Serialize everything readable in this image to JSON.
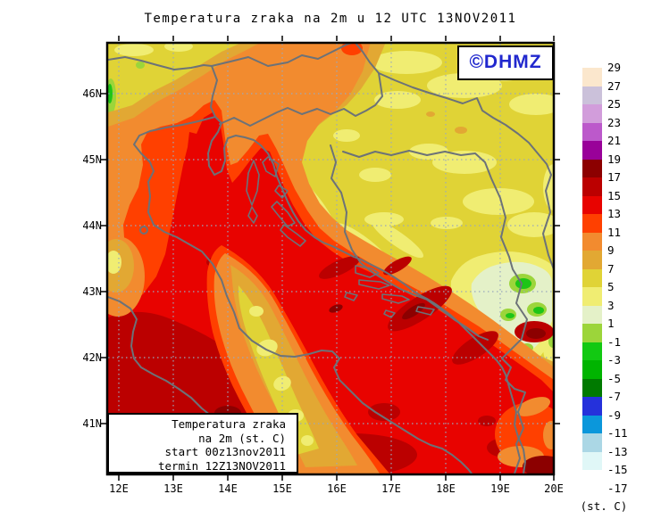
{
  "title": "Temperatura zraka na 2m u 12 UTC 13NOV2011",
  "watermark": {
    "text": "©DHMZ",
    "color": "#2128CE"
  },
  "legend_box": {
    "line1": "Temperatura zraka",
    "line2": "na 2m (st. C)",
    "line3": "start 00z13nov2011",
    "line4": "termin 12Z13NOV2011"
  },
  "x_axis": {
    "labels": [
      "12E",
      "13E",
      "14E",
      "15E",
      "16E",
      "17E",
      "18E",
      "19E",
      "20E"
    ]
  },
  "y_axis": {
    "labels": [
      "46N",
      "45N",
      "44N",
      "43N",
      "42N",
      "41N"
    ]
  },
  "colorbar": {
    "unit": "(st. C)",
    "ticks": [
      "29",
      "27",
      "25",
      "23",
      "21",
      "19",
      "17",
      "15",
      "13",
      "11",
      "9",
      "7",
      "5",
      "3",
      "1",
      "-1",
      "-3",
      "-5",
      "-7",
      "-9",
      "-11",
      "-13",
      "-15",
      "-17"
    ],
    "colors": [
      "#FBE7CD",
      "#CBC1DA",
      "#D29DDB",
      "#BC59CB",
      "#990199",
      "#8C0000",
      "#BB0000",
      "#E80300",
      "#FF4000",
      "#F28B2F",
      "#E2A833",
      "#E0D336",
      "#F0ED72",
      "#E4F1C8",
      "#9CD53A",
      "#12C912",
      "#00B400",
      "#007A00",
      "#2531DB",
      "#0B97DB",
      "#ABD7E5",
      "#E0F7F7",
      "#FFFFFF"
    ]
  },
  "palette": {
    "bg-yellow": "#E0D336",
    "pale-yellow": "#F0ED72",
    "pale-green": "#E4F1C8",
    "ygreen": "#9CD53A",
    "green": "#1EC517",
    "amber": "#E2A833",
    "orange": "#F28B2F",
    "orange-red": "#FF4000",
    "red": "#E80300",
    "dark-red": "#BB0000",
    "maroon": "#8C0000",
    "border-gray": "#6C7278",
    "grid-blue": "#9AA9BD",
    "tick-black": "#000000"
  }
}
